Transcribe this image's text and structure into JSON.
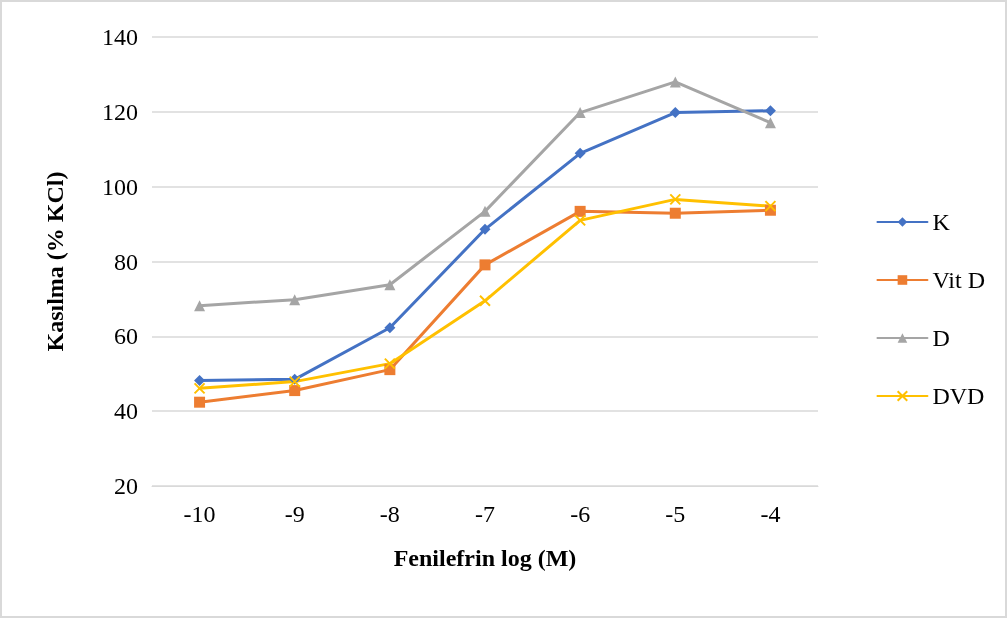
{
  "chart_data": {
    "type": "line",
    "xlabel": "Fenilefrin log (M)",
    "ylabel": "Kasılma (% KCl)",
    "categories": [
      "-10",
      "-9",
      "-8",
      "-7",
      "-6",
      "-5",
      "-4"
    ],
    "series": [
      {
        "name": "K",
        "color": "#4472c4",
        "marker": "diamond",
        "values": [
          48.2,
          48.5,
          62.3,
          88.6,
          108.9,
          119.8,
          120.3
        ]
      },
      {
        "name": "Vit D",
        "color": "#ed7d31",
        "marker": "square",
        "values": [
          42.4,
          45.5,
          51.1,
          79.1,
          93.4,
          92.9,
          93.7
        ]
      },
      {
        "name": "D",
        "color": "#a5a5a5",
        "marker": "triangle",
        "values": [
          68.2,
          69.8,
          73.8,
          93.4,
          119.8,
          128,
          117.1
        ]
      },
      {
        "name": "DVD",
        "color": "#ffc000",
        "marker": "cross",
        "values": [
          46.1,
          47.9,
          52.7,
          69.5,
          91,
          96.6,
          94.8
        ]
      }
    ],
    "ylim": [
      20,
      140
    ],
    "yticks": [
      20,
      40,
      60,
      80,
      100,
      120,
      140
    ],
    "grid": "y",
    "legend": "right",
    "line_style": "solid"
  }
}
